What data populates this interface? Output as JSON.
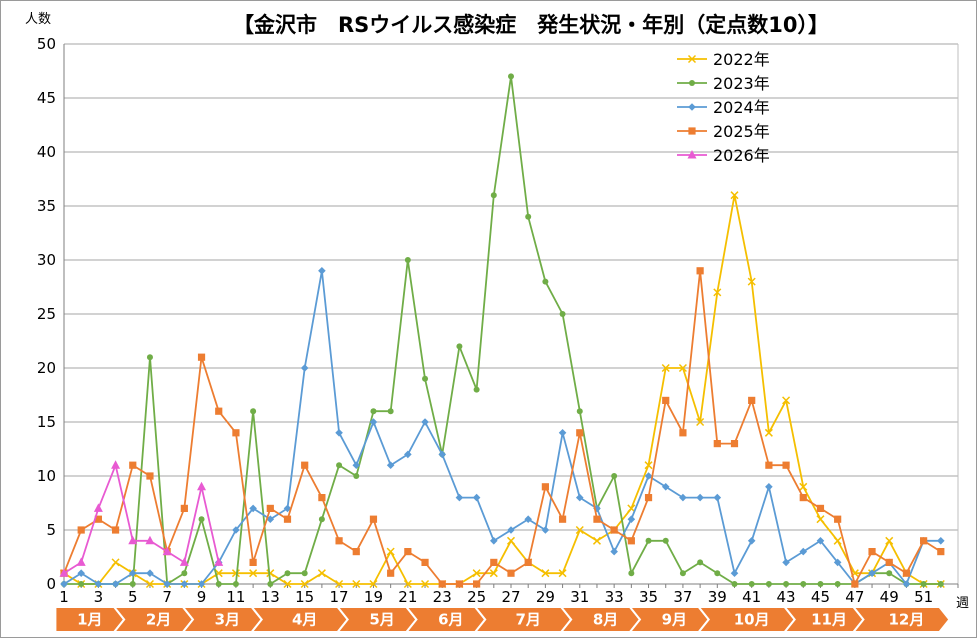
{
  "chart_data": {
    "type": "line",
    "title": "【金沢市　RSウイルス感染症　発生状況・年別（定点数10）】",
    "ylabel": "人数",
    "xlabel": "週",
    "ylim": [
      0,
      50
    ],
    "xlim": [
      1,
      53
    ],
    "yticks": [
      "0",
      "5",
      "10",
      "15",
      "20",
      "25",
      "30",
      "35",
      "40",
      "45",
      "50"
    ],
    "xticks": [
      "1",
      "3",
      "5",
      "7",
      "9",
      "11",
      "13",
      "15",
      "17",
      "19",
      "21",
      "23",
      "25",
      "27",
      "29",
      "31",
      "33",
      "35",
      "37",
      "39",
      "41",
      "43",
      "45",
      "47",
      "49",
      "51"
    ],
    "grid": true,
    "legend_position": "top-right",
    "months": [
      {
        "label": "1月",
        "start": 0.5,
        "end": 4.5
      },
      {
        "label": "2月",
        "start": 4.5,
        "end": 8.5
      },
      {
        "label": "3月",
        "start": 8.5,
        "end": 12.5
      },
      {
        "label": "4月",
        "start": 12.5,
        "end": 17.5
      },
      {
        "label": "5月",
        "start": 17.5,
        "end": 21.5
      },
      {
        "label": "6月",
        "start": 21.5,
        "end": 25.5
      },
      {
        "label": "7月",
        "start": 25.5,
        "end": 30.5
      },
      {
        "label": "8月",
        "start": 30.5,
        "end": 34.5
      },
      {
        "label": "9月",
        "start": 34.5,
        "end": 38.5
      },
      {
        "label": "10月",
        "start": 38.5,
        "end": 43.5
      },
      {
        "label": "11月",
        "start": 43.5,
        "end": 47.5
      },
      {
        "label": "12月",
        "start": 47.5,
        "end": 52.5
      }
    ],
    "series": [
      {
        "name": "2022年",
        "color": "#f5bf00",
        "marker": "x",
        "values": [
          1,
          0,
          0,
          2,
          1,
          0,
          0,
          0,
          0,
          1,
          1,
          1,
          1,
          0,
          0,
          1,
          0,
          0,
          0,
          3,
          0,
          0,
          0,
          0,
          1,
          1,
          4,
          2,
          1,
          1,
          5,
          4,
          5,
          7,
          11,
          20,
          20,
          15,
          27,
          36,
          28,
          14,
          17,
          9,
          6,
          4,
          1,
          1,
          4,
          1,
          0,
          0
        ]
      },
      {
        "name": "2023年",
        "color": "#70ad47",
        "marker": "circle",
        "values": [
          0,
          0,
          0,
          0,
          0,
          21,
          0,
          1,
          6,
          0,
          0,
          16,
          0,
          1,
          1,
          6,
          11,
          10,
          16,
          16,
          30,
          19,
          12,
          22,
          18,
          36,
          47,
          34,
          28,
          25,
          16,
          7,
          10,
          1,
          4,
          4,
          1,
          2,
          1,
          0,
          0,
          0,
          0,
          0,
          0,
          0,
          0,
          1,
          1,
          0,
          0,
          0
        ]
      },
      {
        "name": "2024年",
        "color": "#5b9bd5",
        "marker": "diamond",
        "values": [
          0,
          1,
          0,
          0,
          1,
          1,
          0,
          0,
          0,
          2,
          5,
          7,
          6,
          7,
          20,
          29,
          14,
          11,
          15,
          11,
          12,
          15,
          12,
          8,
          8,
          4,
          5,
          6,
          5,
          14,
          8,
          7,
          3,
          6,
          10,
          9,
          8,
          8,
          8,
          1,
          4,
          9,
          2,
          3,
          4,
          2,
          0,
          1,
          2,
          0,
          4,
          4
        ]
      },
      {
        "name": "2025年",
        "color": "#ed7d31",
        "marker": "square",
        "values": [
          1,
          5,
          6,
          5,
          11,
          10,
          3,
          7,
          21,
          16,
          14,
          2,
          7,
          6,
          11,
          8,
          4,
          3,
          6,
          1,
          3,
          2,
          0,
          0,
          0,
          2,
          1,
          2,
          9,
          6,
          14,
          6,
          5,
          4,
          8,
          17,
          14,
          29,
          13,
          13,
          17,
          11,
          11,
          8,
          7,
          6,
          0,
          3,
          2,
          1,
          4,
          3
        ]
      },
      {
        "name": "2026年",
        "color": "#e85ad2",
        "marker": "triangle",
        "values": [
          1,
          2,
          7,
          11,
          4,
          4,
          3,
          2,
          9,
          2
        ]
      }
    ]
  }
}
